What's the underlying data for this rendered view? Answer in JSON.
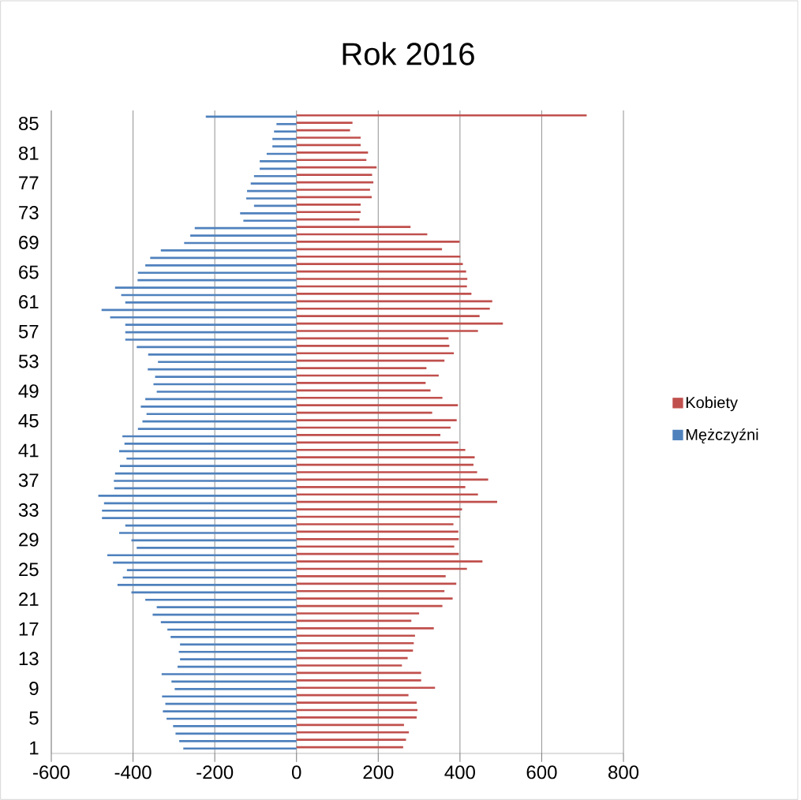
{
  "chart_data": {
    "type": "bar",
    "orientation": "horizontal",
    "title": "Rok 2016",
    "categories": [
      null,
      "85",
      null,
      null,
      null,
      "81",
      null,
      null,
      null,
      "77",
      null,
      null,
      null,
      "73",
      null,
      null,
      null,
      "69",
      null,
      null,
      null,
      "65",
      null,
      null,
      null,
      "61",
      null,
      null,
      null,
      "57",
      null,
      null,
      null,
      "53",
      null,
      null,
      null,
      "49",
      null,
      null,
      null,
      "45",
      null,
      null,
      null,
      "41",
      null,
      null,
      null,
      "37",
      null,
      null,
      null,
      "33",
      null,
      null,
      null,
      "29",
      null,
      null,
      null,
      "25",
      null,
      null,
      null,
      "21",
      null,
      null,
      null,
      "17",
      null,
      null,
      null,
      "13",
      null,
      null,
      null,
      "9",
      null,
      null,
      null,
      "5",
      null,
      null,
      null,
      "1"
    ],
    "series": [
      {
        "name": "Kobiety",
        "color": "#c0504d",
        "values": [
          710,
          137,
          131,
          157,
          157,
          175,
          171,
          196,
          185,
          188,
          180,
          184,
          157,
          157,
          154,
          279,
          320,
          399,
          356,
          401,
          407,
          415,
          418,
          417,
          428,
          479,
          473,
          448,
          505,
          444,
          372,
          374,
          385,
          362,
          318,
          348,
          316,
          328,
          357,
          395,
          332,
          392,
          377,
          352,
          396,
          413,
          436,
          433,
          442,
          469,
          413,
          444,
          491,
          405,
          400,
          384,
          396,
          397,
          386,
          397,
          455,
          417,
          365,
          391,
          362,
          382,
          357,
          300,
          281,
          336,
          290,
          287,
          285,
          272,
          258,
          305,
          305,
          339,
          274,
          294,
          296,
          294,
          263,
          275,
          268,
          261
        ]
      },
      {
        "name": "Mężczyźni",
        "color": "#4f81bd",
        "values": [
          -222,
          -49,
          -55,
          -59,
          -59,
          -73,
          -90,
          -90,
          -104,
          -112,
          -121,
          -123,
          -104,
          -138,
          -130,
          -249,
          -260,
          -275,
          -332,
          -358,
          -370,
          -388,
          -389,
          -444,
          -429,
          -419,
          -477,
          -456,
          -419,
          -419,
          -419,
          -391,
          -363,
          -339,
          -364,
          -346,
          -350,
          -342,
          -370,
          -381,
          -367,
          -377,
          -388,
          -426,
          -421,
          -434,
          -416,
          -432,
          -444,
          -447,
          -446,
          -485,
          -471,
          -476,
          -476,
          -419,
          -434,
          -404,
          -391,
          -463,
          -449,
          -415,
          -425,
          -438,
          -404,
          -370,
          -342,
          -352,
          -332,
          -316,
          -308,
          -285,
          -288,
          -285,
          -291,
          -330,
          -306,
          -298,
          -329,
          -321,
          -327,
          -318,
          -302,
          -296,
          -287,
          -277
        ]
      }
    ],
    "xlim": [
      -600,
      800
    ],
    "xticks": [
      -600,
      -400,
      -200,
      0,
      200,
      400,
      600,
      800
    ],
    "grid": "x",
    "legend": "right"
  }
}
